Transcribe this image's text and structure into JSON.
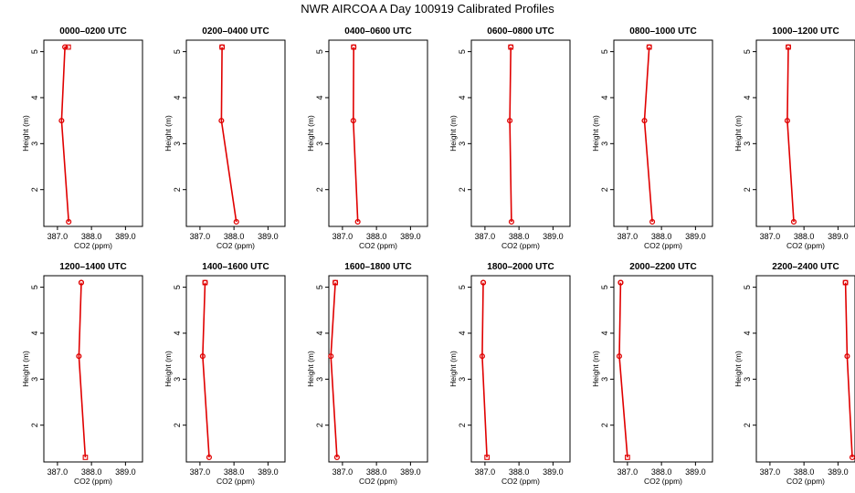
{
  "title": "NWR AIRCOA A  Day 100919  Calibrated Profiles",
  "chart_data": [
    {
      "type": "line",
      "title": "0000–0200 UTC",
      "xlabel": "CO2 (ppm)",
      "ylabel": "Height (m)",
      "xlim": [
        386.6,
        389.5
      ],
      "ylim": [
        1.2,
        5.25
      ],
      "xticks": [
        "387.0",
        "388.0",
        "389.0"
      ],
      "yticks": [
        "2",
        "3",
        "4",
        "5"
      ],
      "x": [
        387.33,
        387.12,
        387.22,
        387.32
      ],
      "y": [
        1.3,
        3.5,
        5.1,
        5.1
      ],
      "markers": [
        "circle",
        "circle",
        "circle",
        "square"
      ]
    },
    {
      "type": "line",
      "title": "0200–0400 UTC",
      "xlabel": "CO2 (ppm)",
      "ylabel": "Height (m)",
      "xlim": [
        386.6,
        389.5
      ],
      "ylim": [
        1.2,
        5.25
      ],
      "xticks": [
        "387.0",
        "388.0",
        "389.0"
      ],
      "yticks": [
        "2",
        "3",
        "4",
        "5"
      ],
      "x": [
        388.07,
        387.63,
        387.65,
        387.65
      ],
      "y": [
        1.3,
        3.5,
        5.1,
        5.1
      ],
      "markers": [
        "circle",
        "circle",
        "circle",
        "square"
      ]
    },
    {
      "type": "line",
      "title": "0400–0600 UTC",
      "xlabel": "CO2 (ppm)",
      "ylabel": "Height (m)",
      "xlim": [
        386.6,
        389.5
      ],
      "ylim": [
        1.2,
        5.25
      ],
      "xticks": [
        "387.0",
        "388.0",
        "389.0"
      ],
      "yticks": [
        "2",
        "3",
        "4",
        "5"
      ],
      "x": [
        387.45,
        387.32,
        387.33,
        387.33
      ],
      "y": [
        1.3,
        3.5,
        5.1,
        5.1
      ],
      "markers": [
        "circle",
        "circle",
        "circle",
        "square"
      ]
    },
    {
      "type": "line",
      "title": "0600–0800 UTC",
      "xlabel": "CO2 (ppm)",
      "ylabel": "Height (m)",
      "xlim": [
        386.6,
        389.5
      ],
      "ylim": [
        1.2,
        5.25
      ],
      "xticks": [
        "387.0",
        "388.0",
        "389.0"
      ],
      "yticks": [
        "2",
        "3",
        "4",
        "5"
      ],
      "x": [
        387.78,
        387.73,
        387.76,
        387.76
      ],
      "y": [
        1.3,
        3.5,
        5.1,
        5.1
      ],
      "markers": [
        "circle",
        "circle",
        "circle",
        "square"
      ]
    },
    {
      "type": "line",
      "title": "0800–1000 UTC",
      "xlabel": "CO2 (ppm)",
      "ylabel": "Height (m)",
      "xlim": [
        386.6,
        389.5
      ],
      "ylim": [
        1.2,
        5.25
      ],
      "xticks": [
        "387.0",
        "388.0",
        "389.0"
      ],
      "yticks": [
        "2",
        "3",
        "4",
        "5"
      ],
      "x": [
        387.73,
        387.5,
        387.64,
        387.64
      ],
      "y": [
        1.3,
        3.5,
        5.1,
        5.1
      ],
      "markers": [
        "circle",
        "circle",
        "circle",
        "square"
      ]
    },
    {
      "type": "line",
      "title": "1000–1200 UTC",
      "xlabel": "CO2 (ppm)",
      "ylabel": "Height (m)",
      "xlim": [
        386.6,
        389.5
      ],
      "ylim": [
        1.2,
        5.25
      ],
      "xticks": [
        "387.0",
        "388.0",
        "389.0"
      ],
      "yticks": [
        "2",
        "3",
        "4",
        "5"
      ],
      "x": [
        387.7,
        387.51,
        387.54,
        387.54
      ],
      "y": [
        1.3,
        3.5,
        5.1,
        5.1
      ],
      "markers": [
        "circle",
        "circle",
        "circle",
        "square"
      ]
    },
    {
      "type": "line",
      "title": "1200–1400 UTC",
      "xlabel": "CO2 (ppm)",
      "ylabel": "Height (m)",
      "xlim": [
        386.6,
        389.5
      ],
      "ylim": [
        1.2,
        5.25
      ],
      "xticks": [
        "387.0",
        "388.0",
        "389.0"
      ],
      "yticks": [
        "2",
        "3",
        "4",
        "5"
      ],
      "x": [
        387.82,
        387.63,
        387.7,
        387.7
      ],
      "y": [
        1.3,
        3.5,
        5.1,
        5.1
      ],
      "markers": [
        "square",
        "circle",
        "circle",
        "circle"
      ]
    },
    {
      "type": "line",
      "title": "1400–1600 UTC",
      "xlabel": "CO2 (ppm)",
      "ylabel": "Height (m)",
      "xlim": [
        386.6,
        389.5
      ],
      "ylim": [
        1.2,
        5.25
      ],
      "xticks": [
        "387.0",
        "388.0",
        "389.0"
      ],
      "yticks": [
        "2",
        "3",
        "4",
        "5"
      ],
      "x": [
        387.27,
        387.08,
        387.15,
        387.15
      ],
      "y": [
        1.3,
        3.5,
        5.1,
        5.1
      ],
      "markers": [
        "circle",
        "circle",
        "circle",
        "square"
      ]
    },
    {
      "type": "line",
      "title": "1600–1800 UTC",
      "xlabel": "CO2 (ppm)",
      "ylabel": "Height (m)",
      "xlim": [
        386.6,
        389.5
      ],
      "ylim": [
        1.2,
        5.25
      ],
      "xticks": [
        "387.0",
        "388.0",
        "389.0"
      ],
      "yticks": [
        "2",
        "3",
        "4",
        "5"
      ],
      "x": [
        386.84,
        386.66,
        386.79,
        386.79
      ],
      "y": [
        1.3,
        3.5,
        5.1,
        5.1
      ],
      "markers": [
        "circle",
        "circle",
        "circle",
        "square"
      ]
    },
    {
      "type": "line",
      "title": "1800–2000 UTC",
      "xlabel": "CO2 (ppm)",
      "ylabel": "Height (m)",
      "xlim": [
        386.6,
        389.5
      ],
      "ylim": [
        1.2,
        5.25
      ],
      "xticks": [
        "387.0",
        "388.0",
        "389.0"
      ],
      "yticks": [
        "2",
        "3",
        "4",
        "5"
      ],
      "x": [
        387.06,
        386.92,
        386.95,
        386.95
      ],
      "y": [
        1.3,
        3.5,
        5.1,
        5.1
      ],
      "markers": [
        "square",
        "circle",
        "circle",
        "circle"
      ]
    },
    {
      "type": "line",
      "title": "2000–2200 UTC",
      "xlabel": "CO2 (ppm)",
      "ylabel": "Height (m)",
      "xlim": [
        386.6,
        389.5
      ],
      "ylim": [
        1.2,
        5.25
      ],
      "xticks": [
        "387.0",
        "388.0",
        "389.0"
      ],
      "yticks": [
        "2",
        "3",
        "4",
        "5"
      ],
      "x": [
        387.0,
        386.76,
        386.8,
        386.8
      ],
      "y": [
        1.3,
        3.5,
        5.1,
        5.1
      ],
      "markers": [
        "square",
        "circle",
        "circle",
        "circle"
      ]
    },
    {
      "type": "line",
      "title": "2200–2400 UTC",
      "xlabel": "CO2 (ppm)",
      "ylabel": "Height (m)",
      "xlim": [
        386.6,
        389.5
      ],
      "ylim": [
        1.2,
        5.25
      ],
      "xticks": [
        "387.0",
        "388.0",
        "389.0"
      ],
      "yticks": [
        "2",
        "3",
        "4",
        "5"
      ],
      "x": [
        389.42,
        389.27,
        389.22,
        389.22
      ],
      "y": [
        1.3,
        3.5,
        5.1,
        5.1
      ],
      "markers": [
        "circle",
        "circle",
        "circle",
        "square"
      ]
    }
  ]
}
